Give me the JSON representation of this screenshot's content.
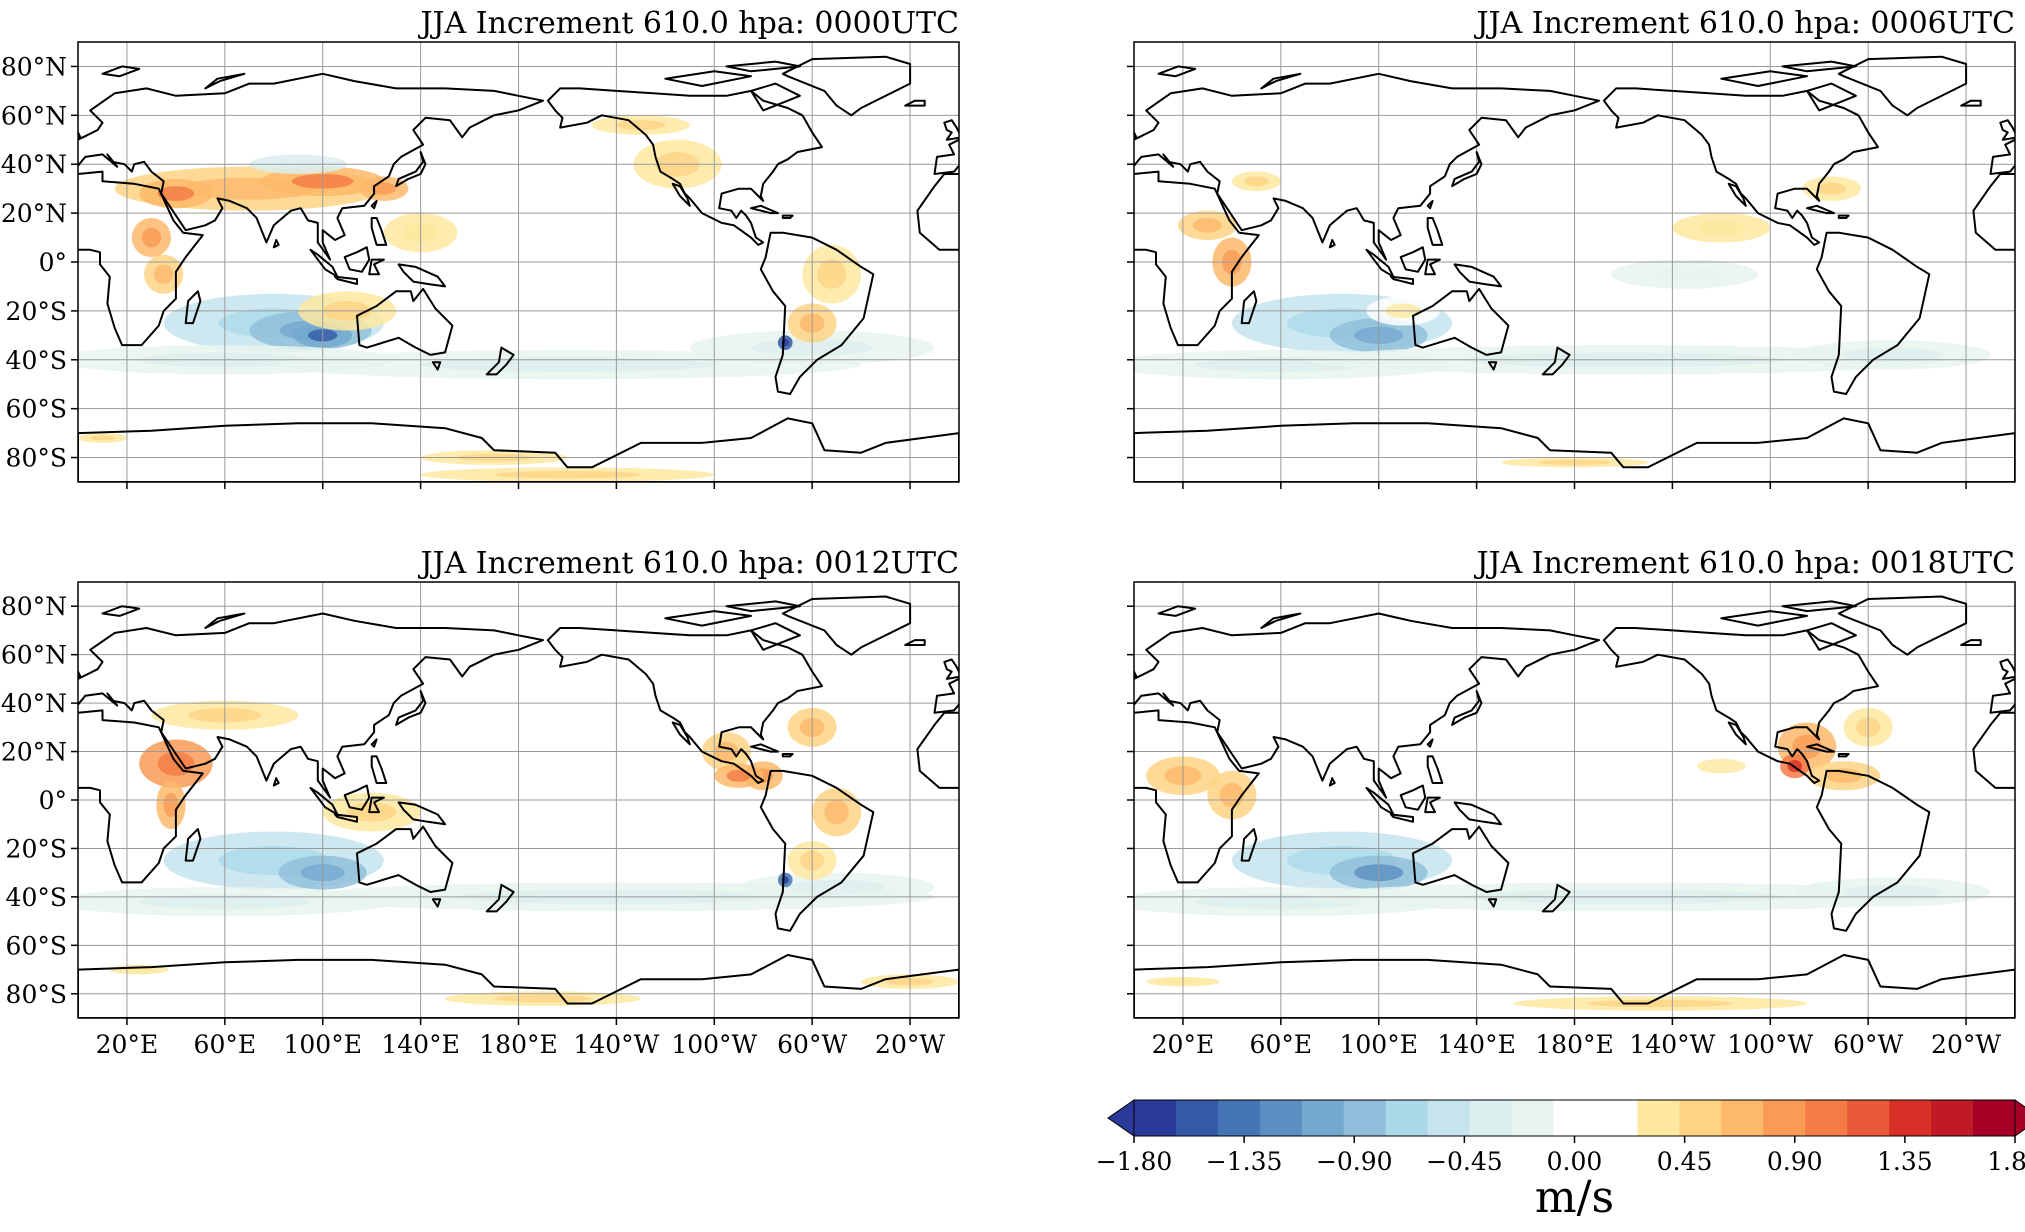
{
  "panels": [
    {
      "title": "JJA Increment 610.0 hpa: 0000UTC",
      "show_ylabels": true,
      "show_xlabels": false
    },
    {
      "title": "JJA Increment 610.0 hpa: 0006UTC",
      "show_ylabels": false,
      "show_xlabels": false
    },
    {
      "title": "JJA Increment 610.0 hpa: 0012UTC",
      "show_ylabels": true,
      "show_xlabels": true
    },
    {
      "title": "JJA Increment 610.0 hpa: 0018UTC",
      "show_ylabels": false,
      "show_xlabels": true
    }
  ],
  "map": {
    "lon_ticks": [
      20,
      60,
      100,
      140,
      180,
      220,
      260,
      300,
      340
    ],
    "lon_labels": [
      "20°E",
      "60°E",
      "100°E",
      "140°E",
      "180°E",
      "140°W",
      "100°W",
      "60°W",
      "20°W"
    ],
    "lat_ticks": [
      80,
      60,
      40,
      20,
      0,
      -20,
      -40,
      -60,
      -80
    ],
    "lat_labels": [
      "80°N",
      "60°N",
      "40°N",
      "20°N",
      "0°",
      "20°S",
      "40°S",
      "60°S",
      "80°S"
    ],
    "lon_range": [
      0,
      360
    ],
    "lat_range": [
      -90,
      90
    ],
    "projection": "PlateCarree, central longitude 180",
    "gridlines": true,
    "coastlines": true
  },
  "colorbar": {
    "tick_values": [
      -1.8,
      -1.35,
      -0.9,
      -0.45,
      0.0,
      0.45,
      0.9,
      1.35,
      1.8
    ],
    "tick_labels": [
      "−1.80",
      "−1.35",
      "−0.90",
      "−0.45",
      "0.00",
      "0.45",
      "0.90",
      "1.35",
      "1.80"
    ],
    "colors": [
      "#2b3a9a",
      "#3459a6",
      "#4575b4",
      "#5b8ec1",
      "#74a9cf",
      "#91bfdb",
      "#abd9e9",
      "#c6e4ef",
      "#dcefef",
      "#e8f4ee",
      "#ffffff",
      "#ffffff",
      "#fee8a0",
      "#fed384",
      "#fdb86a",
      "#f99b55",
      "#f47b45",
      "#e85a38",
      "#d73027",
      "#c01a27",
      "#a50026"
    ],
    "extend": "both",
    "unit_label": "m/s"
  },
  "chart_data": {
    "type": "map-contourf",
    "variable": "JJA increment at 610.0 hPa",
    "unit": "m/s",
    "color_range": [
      -1.8,
      1.8
    ],
    "features": [
      {
        "name": "Indian Ocean / southern subtropics negative band",
        "lon_range": [
          40,
          120
        ],
        "lat_range": [
          -35,
          -10
        ],
        "approx_value": -0.9,
        "panels": [
          "0000UTC",
          "0006UTC",
          "0012UTC",
          "0018UTC"
        ]
      },
      {
        "name": "Southern Ocean weak negative band",
        "lon_range": [
          0,
          360
        ],
        "lat_range": [
          -50,
          -35
        ],
        "approx_value": -0.3,
        "panels": [
          "0000UTC",
          "0006UTC",
          "0012UTC",
          "0018UTC"
        ]
      },
      {
        "name": "Asian subtropical positive band",
        "lon_range": [
          20,
          130
        ],
        "lat_range": [
          20,
          40
        ],
        "approx_value": 0.6,
        "panels": [
          "0000UTC"
        ]
      },
      {
        "name": "East Africa positive",
        "lon_range": [
          30,
          50
        ],
        "lat_range": [
          -5,
          15
        ],
        "approx_value": 0.9,
        "panels": [
          "0000UTC",
          "0006UTC",
          "0012UTC",
          "0018UTC"
        ]
      },
      {
        "name": "Central America positive",
        "lon_range": [
          260,
          290
        ],
        "lat_range": [
          5,
          25
        ],
        "approx_value": 1.0,
        "panels": [
          "0012UTC",
          "0018UTC"
        ]
      },
      {
        "name": "Southern Andes negative",
        "lon_range": [
          285,
          295
        ],
        "lat_range": [
          -40,
          -28
        ],
        "approx_value": -1.5,
        "panels": [
          "0000UTC",
          "0012UTC"
        ]
      },
      {
        "name": "Antarctic coast positive",
        "lon_range": [
          120,
          280
        ],
        "lat_range": [
          -88,
          -80
        ],
        "approx_value": 0.4,
        "panels": [
          "0000UTC",
          "0006UTC",
          "0012UTC",
          "0018UTC"
        ]
      }
    ]
  }
}
